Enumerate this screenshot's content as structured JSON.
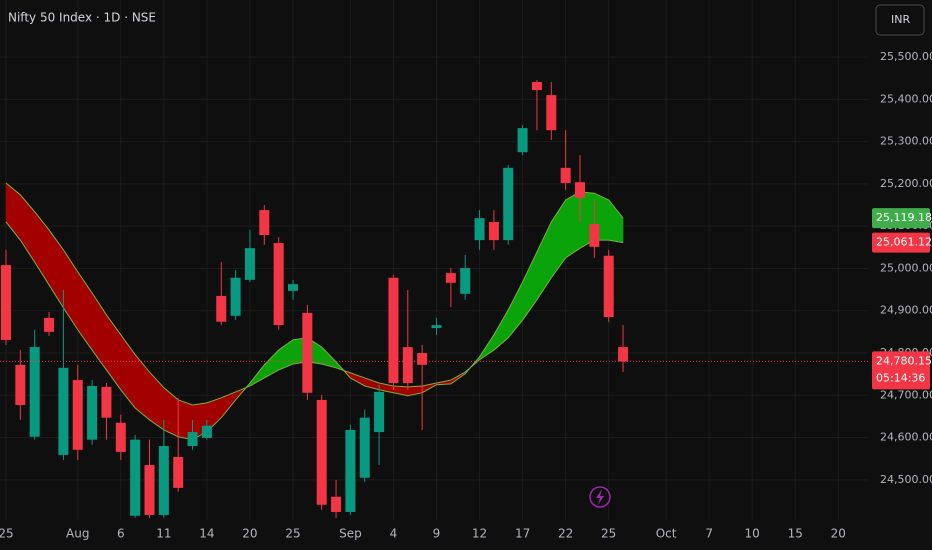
{
  "chart_data": {
    "type": "candlestick",
    "title": "Nifty 50 Index · 1D · NSE",
    "currency": "INR",
    "countdown": "05:14:36",
    "categories": [
      "25",
      null,
      null,
      null,
      null,
      "Aug",
      null,
      null,
      "6",
      null,
      null,
      "11",
      null,
      null,
      "14",
      null,
      null,
      "20",
      null,
      null,
      "25",
      null,
      null,
      null,
      "Sep",
      null,
      null,
      "4",
      null,
      null,
      "9",
      null,
      null,
      "12",
      null,
      null,
      "17",
      null,
      null,
      "22",
      null,
      null,
      "25",
      null,
      null,
      null,
      "Oct",
      null,
      null,
      "7",
      null,
      null,
      "10",
      null,
      null,
      "15",
      null,
      null,
      "20"
    ],
    "open": [
      25008,
      24772,
      24602,
      24883,
      24559,
      24736,
      24595,
      24720,
      24635,
      24415,
      24535,
      24417,
      24554,
      24580,
      24599,
      24935,
      24888,
      24973,
      25138,
      25060,
      24947,
      24895,
      24689,
      24460,
      24424,
      24505,
      24613,
      24978,
      24814,
      24800,
      24859,
      24989,
      24940,
      25067,
      25110,
      25067,
      25275,
      25441,
      25410,
      25238,
      25204,
      25105,
      25030,
      24814,
      null,
      null,
      null,
      null,
      null,
      null,
      null,
      null,
      null,
      null,
      null,
      null,
      null,
      null,
      null
    ],
    "high": [
      25044,
      24807,
      24855,
      24897,
      24949,
      24772,
      24736,
      24729,
      24654,
      24606,
      24595,
      24642,
      24694,
      24642,
      24642,
      25015,
      24996,
      25091,
      25150,
      25074,
      24973,
      24914,
      24701,
      24500,
      24630,
      24666,
      24725,
      24985,
      24949,
      24819,
      24883,
      25001,
      25032,
      25138,
      25138,
      25245,
      25339,
      25446,
      25441,
      25327,
      25268,
      25162,
      25044,
      24866,
      null,
      null,
      null,
      null,
      null,
      null,
      null,
      null,
      null,
      null,
      null,
      null,
      null,
      null,
      null
    ],
    "low": [
      24819,
      24642,
      24595,
      24840,
      24547,
      24547,
      24583,
      24595,
      24547,
      24410,
      24410,
      24410,
      24472,
      24571,
      24595,
      24866,
      24878,
      24968,
      25056,
      24855,
      24926,
      24689,
      24429,
      24410,
      24417,
      24495,
      24535,
      24713,
      24713,
      24618,
      24843,
      24909,
      24926,
      25044,
      25044,
      25056,
      25268,
      25327,
      25304,
      25186,
      25110,
      25025,
      24874,
      24755,
      null,
      null,
      null,
      null,
      null,
      null,
      null,
      null,
      null,
      null,
      null,
      null,
      null,
      null,
      null
    ],
    "close": [
      24831,
      24677,
      24814,
      24850,
      24765,
      24571,
      24722,
      24647,
      24566,
      24595,
      24417,
      24580,
      24481,
      24613,
      24628,
      24874,
      24978,
      25048,
      25079,
      24866,
      24963,
      24706,
      24441,
      24424,
      24618,
      24647,
      24708,
      24729,
      24729,
      24772,
      24866,
      24966,
      25001,
      25119,
      25067,
      25238,
      25332,
      25422,
      25327,
      25202,
      25167,
      25051,
      24885,
      24780.15,
      null,
      null,
      null,
      null,
      null,
      null,
      null,
      null,
      null,
      null,
      null,
      null,
      null,
      null,
      null
    ],
    "value_labels": [
      null,
      null,
      null,
      null,
      null,
      null,
      null,
      null,
      null,
      null,
      null,
      null,
      null,
      null,
      null,
      null,
      null,
      null,
      null,
      null,
      null,
      null,
      null,
      null,
      null,
      null,
      null,
      null,
      null,
      null,
      null,
      null,
      null,
      null,
      null,
      null,
      null,
      null,
      null,
      null,
      null,
      null,
      null,
      "24,780.15",
      null,
      null,
      null,
      null,
      null,
      null,
      null,
      null,
      null,
      null,
      null,
      null,
      null,
      null,
      null
    ],
    "up_color": "#089981",
    "down_color": "#f23645",
    "bands": {
      "up_color": "#0aa30a",
      "down_color": "#a30000",
      "line_color": "#7fae3a",
      "fast": {
        "color": "#3fae4a",
        "values": [
          25110,
          25067,
          25015,
          24961,
          24907,
          24855,
          24807,
          24760,
          24713,
          24670,
          24642,
          24618,
          24602,
          24595,
          24614,
          24647,
          24689,
          24729,
          24772,
          24807,
          24831,
          24836,
          24814,
          24779,
          24741,
          24722,
          24713,
          24706,
          24699,
          24706,
          24725,
          24727,
          24751,
          24791,
          24843,
          24902,
          24968,
          25039,
          25110,
          25162,
          25181,
          25178,
          25162,
          25119.18,
          null,
          null,
          null,
          null,
          null,
          null,
          null,
          null,
          null,
          null,
          null,
          null,
          null,
          null,
          null
        ],
        "value_labels": [
          null,
          null,
          null,
          null,
          null,
          null,
          null,
          null,
          null,
          null,
          null,
          null,
          null,
          null,
          null,
          null,
          null,
          null,
          null,
          null,
          null,
          null,
          null,
          null,
          null,
          null,
          null,
          null,
          null,
          null,
          null,
          null,
          null,
          null,
          null,
          null,
          null,
          null,
          null,
          null,
          null,
          null,
          null,
          "25,119.18",
          null,
          null,
          null,
          null,
          null,
          null,
          null,
          null,
          null,
          null,
          null,
          null,
          null,
          null,
          null
        ]
      },
      "slow": {
        "color": "#f23645",
        "values": [
          25202,
          25174,
          25134,
          25091,
          25044,
          24992,
          24942,
          24890,
          24843,
          24796,
          24755,
          24718,
          24689,
          24677,
          24682,
          24694,
          24708,
          24722,
          24741,
          24760,
          24774,
          24779,
          24774,
          24765,
          24753,
          24741,
          24729,
          24722,
          24720,
          24722,
          24729,
          24736,
          24755,
          24784,
          24807,
          24836,
          24878,
          24926,
          24978,
          25025,
          25048,
          25067,
          25067,
          25061.12,
          null,
          null,
          null,
          null,
          null,
          null,
          null,
          null,
          null,
          null,
          null,
          null,
          null,
          null,
          null
        ],
        "value_labels": [
          null,
          null,
          null,
          null,
          null,
          null,
          null,
          null,
          null,
          null,
          null,
          null,
          null,
          null,
          null,
          null,
          null,
          null,
          null,
          null,
          null,
          null,
          null,
          null,
          null,
          null,
          null,
          null,
          null,
          null,
          null,
          null,
          null,
          null,
          null,
          null,
          null,
          null,
          null,
          null,
          null,
          null,
          null,
          "25,061.12",
          null,
          null,
          null,
          null,
          null,
          null,
          null,
          null,
          null,
          null,
          null,
          null,
          null,
          null,
          null
        ]
      }
    },
    "ylim": [
      24405,
      25635
    ],
    "yticks": [
      {
        "value": 24500,
        "label": "24,500.00"
      },
      {
        "value": 24600,
        "label": "24,600.00"
      },
      {
        "value": 24700,
        "label": "24,700.00"
      },
      {
        "value": 24800,
        "label": "24,800.00"
      },
      {
        "value": 24900,
        "label": "24,900.00"
      },
      {
        "value": 25000,
        "label": "25,000.00"
      },
      {
        "value": 25100,
        "label": "25,100.00"
      },
      {
        "value": 25200,
        "label": "25,200.00"
      },
      {
        "value": 25300,
        "label": "25,300.00"
      },
      {
        "value": 25400,
        "label": "25,400.00"
      },
      {
        "value": 25500,
        "label": "25,500.00"
      }
    ],
    "grid": true
  }
}
